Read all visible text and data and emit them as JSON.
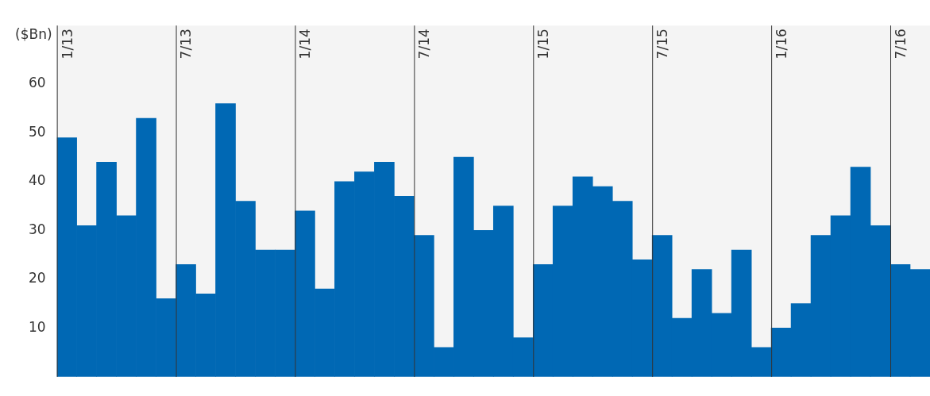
{
  "chart_data": {
    "type": "bar",
    "ylabel": "($Bn)",
    "categories": [
      "1/13",
      null,
      null,
      null,
      null,
      null,
      "7/13",
      null,
      null,
      null,
      null,
      null,
      "1/14",
      null,
      null,
      null,
      null,
      null,
      "7/14",
      null,
      null,
      null,
      null,
      null,
      "1/15",
      null,
      null,
      null,
      null,
      null,
      "7/15",
      null,
      null,
      null,
      null,
      null,
      "1/16",
      null,
      null,
      null,
      null,
      null,
      "7/16",
      null
    ],
    "values": [
      49,
      31,
      44,
      33,
      53,
      16,
      23,
      17,
      56,
      36,
      26,
      26,
      34,
      18,
      40,
      42,
      44,
      37,
      29,
      6,
      45,
      30,
      35,
      8,
      23,
      35,
      41,
      39,
      36,
      24,
      29,
      12,
      22,
      13,
      26,
      6,
      10,
      15,
      29,
      33,
      43,
      31,
      23,
      22
    ],
    "color": "#0068b4",
    "ylim": [
      0,
      72
    ],
    "yticks": [
      10,
      20,
      30,
      40,
      50,
      60
    ],
    "grid": "x",
    "legend": false
  }
}
